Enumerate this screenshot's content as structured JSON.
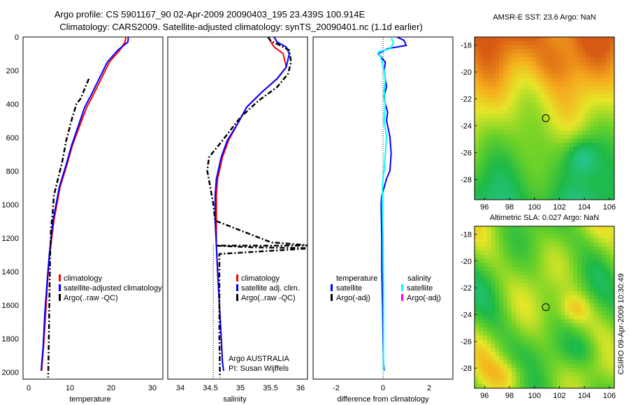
{
  "header": {
    "line1": "Argo profile: CS 5901167_90 02-Apr-2009 20090403_195 23.439S 100.914E",
    "line2": "Climatology: CARS2009. Satellite-adjusted climatology: synTS_20090401.nc (1.1d earlier)"
  },
  "side_label": "CSIRO 09-Apr-2009 10:30:49",
  "colors": {
    "climatology": "#ff0000",
    "satellite": "#0000ff",
    "argo": "#000000",
    "salinity_satellite": "#00ffff",
    "salinity_argo": "#ff00ff"
  },
  "chart_data": [
    {
      "type": "line",
      "name": "temperature-panel",
      "xlabel": "temperature",
      "ylabel": "",
      "xlim": [
        -2,
        32
      ],
      "ylim": [
        2050,
        0
      ],
      "xticks": [
        "0",
        "10",
        "20",
        "30"
      ],
      "yticks": [
        "0",
        "200",
        "400",
        "600",
        "800",
        "1000",
        "1200",
        "1400",
        "1600",
        "1800",
        "2000"
      ],
      "legend": [
        "climatology",
        "satellite-adjusted climatology",
        "Argo(..raw -QC)"
      ],
      "series": [
        {
          "name": "climatology",
          "color": "#ff0000",
          "style": "solid",
          "x": [
            23.0,
            22.8,
            21.5,
            19.0,
            17.0,
            15.0,
            13.5,
            11.5,
            10.0,
            8.5,
            7.0,
            5.5,
            4.5,
            4.0,
            3.5,
            3.0,
            2.5
          ],
          "y": [
            0,
            30,
            80,
            150,
            250,
            350,
            420,
            550,
            650,
            780,
            900,
            1100,
            1300,
            1450,
            1650,
            1850,
            2000
          ]
        },
        {
          "name": "satellite-adjusted climatology",
          "color": "#0000ff",
          "style": "solid",
          "x": [
            23.6,
            23.5,
            21.0,
            18.5,
            16.5,
            14.5,
            13.0,
            11.2,
            9.8,
            8.3,
            6.8,
            5.3,
            4.4,
            3.9,
            3.3,
            2.9,
            2.4
          ],
          "y": [
            0,
            30,
            80,
            150,
            250,
            350,
            420,
            550,
            650,
            780,
            900,
            1100,
            1300,
            1450,
            1650,
            1850,
            2000
          ]
        },
        {
          "name": "Argo(..raw -QC)",
          "color": "#000000",
          "style": "dashdot",
          "x": [
            14.0,
            13.0,
            12.0,
            11.0,
            10.0,
            8.5,
            7.5,
            6.5,
            5.5,
            5.2,
            4.8,
            4.6,
            4.5,
            4.4,
            4.3,
            4.2,
            4.1
          ],
          "y": [
            250,
            310,
            370,
            400,
            480,
            620,
            750,
            850,
            950,
            1050,
            1150,
            1300,
            1450,
            1600,
            1750,
            1900,
            2040
          ]
        }
      ]
    },
    {
      "type": "line",
      "name": "salinity-panel",
      "xlabel": "salinity",
      "xlim": [
        33.8,
        36.1
      ],
      "ylim": [
        2050,
        0
      ],
      "xticks": [
        "34",
        "34.5",
        "35",
        "35.5",
        "36"
      ],
      "legend": [
        "climatology",
        "satellite adj. clim.",
        "Argo(..raw -QC)"
      ],
      "annotations": [
        "Argo AUSTRALIA",
        "PI: Susan Wijffels"
      ],
      "series": [
        {
          "name": "climatology",
          "color": "#ff0000",
          "style": "solid",
          "x": [
            35.45,
            35.5,
            35.55,
            35.7,
            35.75,
            35.6,
            35.35,
            35.1,
            34.95,
            34.8,
            34.7,
            34.62,
            34.6,
            34.6,
            34.6,
            34.62,
            34.65,
            34.68,
            34.7,
            34.72
          ],
          "y": [
            0,
            30,
            60,
            100,
            180,
            250,
            330,
            420,
            520,
            620,
            720,
            850,
            950,
            1100,
            1250,
            1400,
            1600,
            1800,
            1950,
            2000
          ]
        },
        {
          "name": "satellite adj. clim.",
          "color": "#0000ff",
          "style": "solid",
          "x": [
            35.55,
            35.6,
            35.75,
            35.8,
            35.75,
            35.6,
            35.35,
            35.1,
            34.95,
            34.78,
            34.68,
            34.6,
            34.58,
            34.58,
            34.6,
            34.62,
            34.65,
            34.68,
            34.7,
            34.72
          ],
          "y": [
            0,
            30,
            60,
            100,
            180,
            250,
            330,
            420,
            520,
            620,
            720,
            850,
            950,
            1100,
            1250,
            1400,
            1600,
            1800,
            1950,
            2000
          ]
        },
        {
          "name": "Argo(..raw -QC)",
          "color": "#000000",
          "style": "dashdot",
          "x": [
            35.45,
            35.5,
            35.65,
            35.8,
            35.83,
            35.78,
            35.6,
            35.3,
            35.0,
            34.7,
            34.48,
            34.45,
            34.5,
            34.55,
            34.58,
            35.5,
            36.2,
            34.6,
            35.2,
            36.2,
            34.65,
            34.65,
            34.65,
            34.66
          ],
          "y": [
            0,
            25,
            50,
            80,
            150,
            220,
            300,
            380,
            480,
            620,
            720,
            800,
            900,
            1000,
            1100,
            1230,
            1250,
            1250,
            1260,
            1265,
            1300,
            1500,
            1800,
            2040
          ]
        }
      ]
    },
    {
      "type": "line",
      "name": "difference-panel",
      "xlabel": "difference from climatology",
      "xlim": [
        -3,
        3
      ],
      "ylim": [
        2050,
        0
      ],
      "xticks": [
        "-2",
        "0",
        "2"
      ],
      "legend": {
        "temperature_title": "temperature",
        "salinity_title": "salinity",
        "temperature_items": [
          "satellite",
          "Argo(-adj)"
        ],
        "salinity_items": [
          "satellite",
          "Argo(-adj)"
        ]
      },
      "series": [
        {
          "name": "temperature satellite",
          "color": "#0000ff",
          "style": "solid",
          "x": [
            0.6,
            0.9,
            1.0,
            0.2,
            -0.2,
            0.1,
            0.05,
            0.1,
            0.15,
            0.05,
            0.1,
            0.2,
            0.15,
            0.3,
            0.35,
            0.3,
            0.15,
            0.05,
            -0.05,
            -0.08,
            -0.05,
            -0.05,
            -0.02,
            0.0,
            0.02,
            0.05
          ],
          "y": [
            0,
            20,
            50,
            70,
            100,
            150,
            200,
            250,
            300,
            350,
            400,
            450,
            500,
            600,
            700,
            800,
            850,
            900,
            950,
            1000,
            1200,
            1400,
            1600,
            1800,
            1950,
            2000
          ]
        },
        {
          "name": "salinity satellite",
          "color": "#00ffff",
          "style": "solid",
          "x": [
            0.35,
            0.45,
            0.3,
            -0.2,
            -0.1,
            0.05,
            0.1,
            0.05,
            0.1,
            0.05,
            0.15,
            0.1,
            0.05,
            0.0,
            -0.02,
            -0.03,
            0.0,
            0.02,
            0.02,
            0.02
          ],
          "y": [
            0,
            40,
            70,
            90,
            120,
            200,
            260,
            320,
            400,
            500,
            600,
            700,
            800,
            850,
            900,
            1000,
            1200,
            1500,
            1800,
            2000
          ]
        }
      ]
    },
    {
      "type": "heatmap",
      "name": "sst-map",
      "title": "AMSR-E SST: 23.6 Argo: NaN",
      "xticks": [
        "96",
        "98",
        "100",
        "102",
        "104",
        "106"
      ],
      "yticks": [
        "-18",
        "-20",
        "-22",
        "-24",
        "-26",
        "-28"
      ],
      "xlim": [
        95.2,
        106.4
      ],
      "ylim": [
        -29.5,
        -17.4
      ],
      "marker": {
        "lon": 100.914,
        "lat": -23.439
      }
    },
    {
      "type": "heatmap",
      "name": "sla-map",
      "title": "Altimetric SLA: 0.027 Argo: NaN",
      "xticks": [
        "96",
        "98",
        "100",
        "102",
        "104",
        "106"
      ],
      "yticks": [
        "-18",
        "-20",
        "-22",
        "-24",
        "-26",
        "-28"
      ],
      "xlim": [
        95.2,
        106.4
      ],
      "ylim": [
        -29.5,
        -17.4
      ],
      "marker": {
        "lon": 100.914,
        "lat": -23.439
      }
    }
  ]
}
